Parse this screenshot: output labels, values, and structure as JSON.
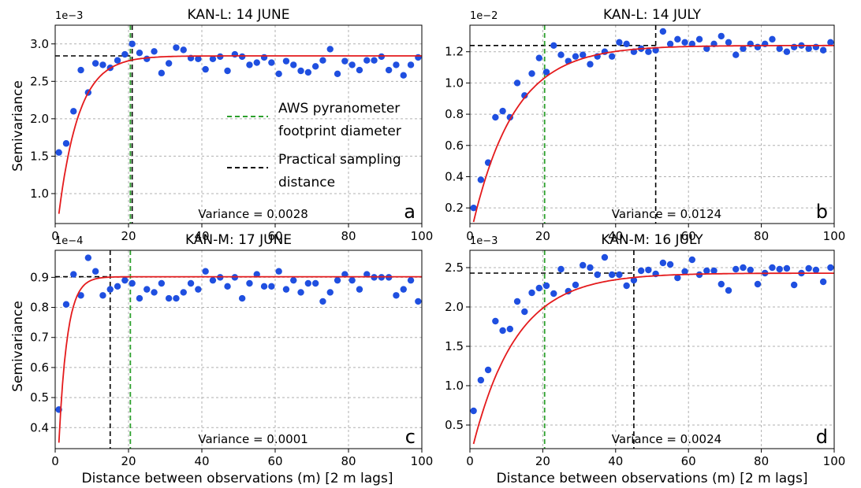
{
  "figure": {
    "xlabel": "Distance between observations (m) [2 m lags]",
    "ylabel": "Semivariance"
  },
  "legend": {
    "items": [
      {
        "lines": [
          "AWS pyranometer",
          "footprint diameter"
        ],
        "color": "#2ca02c"
      },
      {
        "lines": [
          "Practical sampling",
          "distance"
        ],
        "color": "#000000"
      }
    ]
  },
  "colors": {
    "points": "#1f4fe0",
    "model": "#e41a1c",
    "aws": "#2ca02c",
    "practical": "#000000",
    "sill": "#000000"
  },
  "chart_data": [
    {
      "type": "scatter",
      "title": "KAN-L: 14 JUNE",
      "panel_letter": "a",
      "variance_label": "Variance = 0.0028",
      "scale_label": "1e−3",
      "xlim": [
        0,
        100
      ],
      "ylim": [
        0.6,
        3.25
      ],
      "xticks": [
        0,
        20,
        40,
        60,
        80,
        100
      ],
      "yticks": [
        1.0,
        1.5,
        2.0,
        2.5,
        3.0
      ],
      "ytick_labels": [
        "1.0",
        "1.5",
        "2.0",
        "2.5",
        "3.0"
      ],
      "x": [
        1,
        3,
        5,
        7,
        9,
        11,
        13,
        15,
        17,
        19,
        21,
        23,
        25,
        27,
        29,
        31,
        33,
        35,
        37,
        39,
        41,
        43,
        45,
        47,
        49,
        51,
        53,
        55,
        57,
        59,
        61,
        63,
        65,
        67,
        69,
        71,
        73,
        75,
        77,
        79,
        81,
        83,
        85,
        87,
        89,
        91,
        93,
        95,
        97,
        99
      ],
      "y": [
        1.55,
        1.67,
        2.1,
        2.65,
        2.35,
        2.74,
        2.72,
        2.68,
        2.78,
        2.86,
        3.0,
        2.88,
        2.8,
        2.9,
        2.61,
        2.74,
        2.95,
        2.92,
        2.81,
        2.8,
        2.66,
        2.8,
        2.83,
        2.64,
        2.86,
        2.83,
        2.72,
        2.75,
        2.82,
        2.75,
        2.6,
        2.77,
        2.72,
        2.64,
        2.62,
        2.7,
        2.78,
        2.93,
        2.6,
        2.77,
        2.72,
        2.65,
        2.78,
        2.78,
        2.83,
        2.65,
        2.72,
        2.58,
        2.72,
        2.82
      ],
      "model": {
        "sill": 2.84,
        "range": 5.5,
        "start": 0.73
      },
      "aws_line_x": 20.5,
      "practical_line_x": 21.0,
      "sill_line_to_x": 20.5
    },
    {
      "type": "scatter",
      "title": "KAN-L: 14 JULY",
      "panel_letter": "b",
      "variance_label": "Variance = 0.0124",
      "scale_label": "1e−2",
      "xlim": [
        0,
        100
      ],
      "ylim": [
        0.1,
        1.37
      ],
      "xticks": [
        0,
        20,
        40,
        60,
        80,
        100
      ],
      "yticks": [
        0.2,
        0.4,
        0.6,
        0.8,
        1.0,
        1.2
      ],
      "ytick_labels": [
        "0.2",
        "0.4",
        "0.6",
        "0.8",
        "1.0",
        "1.2"
      ],
      "x": [
        1,
        3,
        5,
        7,
        9,
        11,
        13,
        15,
        17,
        19,
        21,
        23,
        25,
        27,
        29,
        31,
        33,
        35,
        37,
        39,
        41,
        43,
        45,
        47,
        49,
        51,
        53,
        55,
        57,
        59,
        61,
        63,
        65,
        67,
        69,
        71,
        73,
        75,
        77,
        79,
        81,
        83,
        85,
        87,
        89,
        91,
        93,
        95,
        97,
        99
      ],
      "y": [
        0.2,
        0.38,
        0.49,
        0.78,
        0.82,
        0.78,
        1.0,
        0.92,
        1.06,
        1.16,
        1.07,
        1.24,
        1.18,
        1.14,
        1.17,
        1.18,
        1.12,
        1.17,
        1.2,
        1.17,
        1.26,
        1.25,
        1.2,
        1.22,
        1.2,
        1.21,
        1.33,
        1.25,
        1.28,
        1.26,
        1.25,
        1.28,
        1.22,
        1.25,
        1.3,
        1.26,
        1.18,
        1.22,
        1.25,
        1.23,
        1.25,
        1.28,
        1.22,
        1.2,
        1.23,
        1.24,
        1.22,
        1.23,
        1.21,
        1.26
      ],
      "model": {
        "sill": 1.24,
        "range": 11.5,
        "start": 0.11
      },
      "aws_line_x": 20.5,
      "practical_line_x": 51.0,
      "sill_line_to_x": 51.0
    },
    {
      "type": "scatter",
      "title": "KAN-M: 17 JUNE",
      "panel_letter": "c",
      "variance_label": "Variance = 0.0001",
      "scale_label": "1e−4",
      "xlim": [
        0,
        100
      ],
      "ylim": [
        0.33,
        0.99
      ],
      "xticks": [
        0,
        20,
        40,
        60,
        80,
        100
      ],
      "yticks": [
        0.4,
        0.5,
        0.6,
        0.7,
        0.8,
        0.9
      ],
      "ytick_labels": [
        "0.4",
        "0.5",
        "0.6",
        "0.7",
        "0.8",
        "0.9"
      ],
      "x": [
        1,
        3,
        5,
        7,
        9,
        11,
        13,
        15,
        17,
        19,
        21,
        23,
        25,
        27,
        29,
        31,
        33,
        35,
        37,
        39,
        41,
        43,
        45,
        47,
        49,
        51,
        53,
        55,
        57,
        59,
        61,
        63,
        65,
        67,
        69,
        71,
        73,
        75,
        77,
        79,
        81,
        83,
        85,
        87,
        89,
        91,
        93,
        95,
        97,
        99
      ],
      "y": [
        0.46,
        0.81,
        0.91,
        0.84,
        0.965,
        0.92,
        0.84,
        0.86,
        0.87,
        0.89,
        0.88,
        0.83,
        0.86,
        0.85,
        0.88,
        0.83,
        0.83,
        0.85,
        0.88,
        0.86,
        0.92,
        0.89,
        0.9,
        0.87,
        0.9,
        0.83,
        0.88,
        0.91,
        0.87,
        0.87,
        0.92,
        0.86,
        0.89,
        0.85,
        0.88,
        0.88,
        0.82,
        0.85,
        0.89,
        0.91,
        0.89,
        0.86,
        0.91,
        0.9,
        0.9,
        0.9,
        0.84,
        0.86,
        0.89,
        0.82
      ],
      "model": {
        "sill": 0.902,
        "range": 2.3,
        "start": 0.35
      },
      "aws_line_x": 20.5,
      "practical_line_x": 15.0,
      "sill_line_to_x": 15.0
    },
    {
      "type": "scatter",
      "title": "KAN-M: 16 JULY",
      "panel_letter": "d",
      "variance_label": "Variance = 0.0024",
      "scale_label": "1e−3",
      "xlim": [
        0,
        100
      ],
      "ylim": [
        0.2,
        2.72
      ],
      "xticks": [
        0,
        20,
        40,
        60,
        80,
        100
      ],
      "yticks": [
        0.5,
        1.0,
        1.5,
        2.0,
        2.5
      ],
      "ytick_labels": [
        "0.5",
        "1.0",
        "1.5",
        "2.0",
        "2.5"
      ],
      "x": [
        1,
        3,
        5,
        7,
        9,
        11,
        13,
        15,
        17,
        19,
        21,
        23,
        25,
        27,
        29,
        31,
        33,
        35,
        37,
        39,
        41,
        43,
        45,
        47,
        49,
        51,
        53,
        55,
        57,
        59,
        61,
        63,
        65,
        67,
        69,
        71,
        73,
        75,
        77,
        79,
        81,
        83,
        85,
        87,
        89,
        91,
        93,
        95,
        97,
        99
      ],
      "y": [
        0.68,
        1.07,
        1.2,
        1.82,
        1.7,
        1.72,
        2.07,
        1.94,
        2.18,
        2.24,
        2.27,
        2.17,
        2.48,
        2.2,
        2.28,
        2.53,
        2.5,
        2.41,
        2.63,
        2.41,
        2.41,
        2.27,
        2.34,
        2.46,
        2.47,
        2.42,
        2.56,
        2.54,
        2.37,
        2.45,
        2.6,
        2.41,
        2.46,
        2.46,
        2.29,
        2.21,
        2.48,
        2.5,
        2.47,
        2.29,
        2.43,
        2.5,
        2.48,
        2.49,
        2.28,
        2.43,
        2.49,
        2.47,
        2.32,
        2.5
      ],
      "model": {
        "sill": 2.43,
        "range": 12.0,
        "start": 0.26
      },
      "aws_line_x": 20.5,
      "practical_line_x": 45.0,
      "sill_line_to_x": 45.0
    }
  ]
}
